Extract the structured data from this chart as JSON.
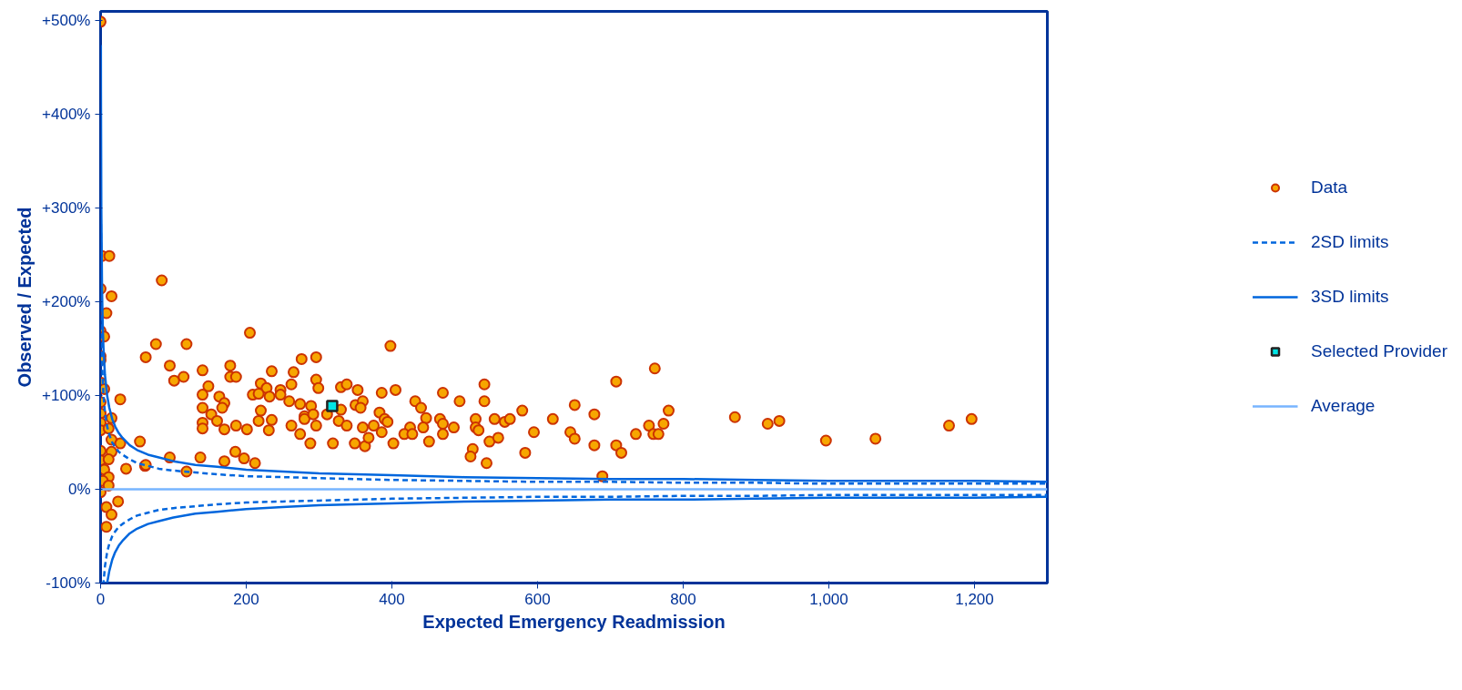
{
  "chart_data": {
    "type": "scatter",
    "xlabel": "Expected Emergency Readmission",
    "ylabel": "Observed / Expected",
    "xlim": [
      0,
      1300
    ],
    "ylim": [
      -100,
      510
    ],
    "xticks": [
      0,
      200,
      400,
      600,
      800,
      {
        "value": 1000,
        "label": "1,000"
      },
      {
        "value": 1200,
        "label": "1,200"
      }
    ],
    "yticks": [
      {
        "value": -100,
        "label": "-100%"
      },
      {
        "value": 0,
        "label": "0%"
      },
      {
        "value": 100,
        "label": "+100%"
      },
      {
        "value": 200,
        "label": "+200%"
      },
      {
        "value": 300,
        "label": "+300%"
      },
      {
        "value": 400,
        "label": "+400%"
      },
      {
        "value": 500,
        "label": "+500%"
      }
    ],
    "grid": false,
    "legend": "right",
    "series": [
      {
        "name": "Data",
        "marker": "circle",
        "color": "#f7a600",
        "x": [
          0,
          2,
          12,
          0,
          15,
          8,
          0,
          5,
          0,
          0,
          0,
          5,
          0,
          27,
          0,
          15,
          0,
          0,
          11,
          15,
          27,
          0,
          15,
          0,
          11,
          5,
          11,
          3,
          11,
          0,
          8,
          15,
          24,
          8,
          54,
          35,
          61,
          84,
          76,
          118,
          62,
          95,
          140,
          178,
          101,
          114,
          148,
          140,
          163,
          170,
          140,
          167,
          152,
          160,
          140,
          140,
          170,
          186,
          201,
          178,
          186,
          205,
          235,
          265,
          276,
          296,
          220,
          228,
          247,
          262,
          209,
          217,
          232,
          247,
          259,
          274,
          289,
          296,
          299,
          220,
          235,
          217,
          231,
          262,
          274,
          280,
          280,
          292,
          296,
          311,
          330,
          327,
          338,
          330,
          338,
          353,
          350,
          360,
          357,
          383,
          390,
          394,
          360,
          375,
          386,
          398,
          386,
          405,
          432,
          440,
          447,
          425,
          443,
          417,
          428,
          451,
          466,
          470,
          470,
          470,
          485,
          493,
          515,
          515,
          519,
          527,
          527,
          541,
          555,
          562,
          534,
          546,
          511,
          508,
          530,
          288,
          319,
          349,
          363,
          368,
          402,
          185,
          197,
          212,
          170,
          137,
          95,
          118,
          62,
          579,
          583,
          595,
          621,
          651,
          645,
          651,
          678,
          678,
          689,
          708,
          708,
          715,
          735,
          753,
          761,
          759,
          766,
          773,
          780,
          871,
          916,
          932,
          996,
          1064,
          1165,
          1196
        ],
        "values": [
          499,
          249,
          249,
          214,
          206,
          188,
          169,
          163,
          142,
          138,
          114,
          107,
          93,
          96,
          81,
          76,
          71,
          63,
          65,
          53,
          49,
          41,
          40,
          31,
          32,
          21,
          13,
          9,
          4,
          -3,
          -19,
          -27,
          -13,
          -40,
          51,
          22,
          25,
          223,
          155,
          155,
          141,
          132,
          127,
          132,
          116,
          120,
          110,
          101,
          99,
          92,
          87,
          87,
          80,
          73,
          71,
          65,
          64,
          68,
          64,
          120,
          120,
          167,
          126,
          125,
          139,
          141,
          113,
          108,
          106,
          112,
          101,
          102,
          99,
          101,
          94,
          91,
          89,
          117,
          108,
          84,
          74,
          73,
          63,
          68,
          59,
          78,
          75,
          80,
          68,
          80,
          85,
          73,
          68,
          109,
          112,
          106,
          90,
          94,
          87,
          82,
          75,
          72,
          66,
          68,
          61,
          153,
          103,
          106,
          94,
          87,
          76,
          66,
          66,
          59,
          59,
          51,
          75,
          103,
          70,
          59,
          66,
          94,
          75,
          66,
          63,
          112,
          94,
          75,
          72,
          75,
          51,
          55,
          43,
          35,
          28,
          49,
          49,
          49,
          46,
          55,
          49,
          40,
          33,
          28,
          30,
          34,
          34,
          19,
          26,
          84,
          39,
          61,
          75,
          90,
          61,
          54,
          80,
          47,
          14,
          115,
          47,
          39,
          59,
          68,
          129,
          59,
          59,
          70,
          84,
          77,
          70,
          73,
          52,
          54,
          68,
          75
        ]
      },
      {
        "name": "2SD limits",
        "type": "line",
        "line_style": "dashed",
        "color": "#0066dd",
        "x": [
          0.5,
          1,
          2,
          3,
          4,
          6,
          9,
          12,
          16,
          20,
          25,
          30,
          40,
          50,
          65,
          80,
          100,
          130,
          160,
          200,
          250,
          300,
          400,
          500,
          600,
          700,
          800,
          900,
          1000,
          1100,
          1200,
          1300
        ],
        "values": [
          283,
          200,
          141,
          115,
          100,
          82,
          67,
          58,
          50,
          45,
          40,
          37,
          32,
          28,
          25,
          22,
          20,
          18,
          16,
          14,
          13,
          12,
          10,
          9,
          8,
          8,
          7,
          7,
          6,
          6,
          6,
          6
        ]
      },
      {
        "type": "line",
        "line_style": "dashed",
        "color": "#0066dd",
        "x": [
          0.5,
          1,
          2,
          3,
          4,
          6,
          9,
          12,
          16,
          20,
          25,
          30,
          40,
          50,
          65,
          80,
          100,
          130,
          160,
          200,
          250,
          300,
          400,
          500,
          600,
          700,
          800,
          900,
          1000,
          1100,
          1200,
          1300
        ],
        "values": [
          -100,
          -100,
          -100,
          -100,
          -100,
          -82,
          -67,
          -58,
          -50,
          -45,
          -40,
          -37,
          -32,
          -28,
          -25,
          -22,
          -20,
          -18,
          -16,
          -14,
          -13,
          -12,
          -10,
          -9,
          -8,
          -8,
          -7,
          -7,
          -6,
          -6,
          -6,
          -6
        ]
      },
      {
        "name": "3SD limits",
        "type": "line",
        "line_style": "solid",
        "color": "#0066dd",
        "x": [
          0.4,
          0.5,
          1,
          2,
          3,
          4,
          6,
          9,
          12,
          16,
          20,
          25,
          30,
          40,
          50,
          65,
          80,
          100,
          130,
          160,
          200,
          250,
          300,
          400,
          500,
          600,
          700,
          800,
          900,
          1000,
          1100,
          1200,
          1300
        ],
        "values": [
          474,
          424,
          300,
          212,
          173,
          150,
          122,
          100,
          87,
          75,
          67,
          60,
          55,
          47,
          42,
          37,
          34,
          30,
          26,
          24,
          21,
          19,
          17,
          15,
          13,
          12,
          11,
          11,
          10,
          9,
          9,
          9,
          8
        ]
      },
      {
        "type": "line",
        "line_style": "solid",
        "color": "#0066dd",
        "x": [
          0.4,
          0.5,
          1,
          2,
          3,
          4,
          6,
          9,
          12,
          16,
          20,
          25,
          30,
          40,
          50,
          65,
          80,
          100,
          130,
          160,
          200,
          250,
          300,
          400,
          500,
          600,
          700,
          800,
          900,
          1000,
          1100,
          1200,
          1300
        ],
        "values": [
          -100,
          -100,
          -100,
          -100,
          -100,
          -100,
          -100,
          -100,
          -87,
          -75,
          -67,
          -60,
          -55,
          -47,
          -42,
          -37,
          -34,
          -30,
          -26,
          -24,
          -21,
          -19,
          -17,
          -15,
          -13,
          -12,
          -11,
          -11,
          -10,
          -9,
          -9,
          -9,
          -8
        ]
      },
      {
        "name": "Selected Provider",
        "marker": "square",
        "color": "#00e5e5",
        "x": [
          318
        ],
        "values": [
          89
        ]
      },
      {
        "name": "Average",
        "type": "line",
        "line_style": "solid",
        "color": "#77b5ff",
        "x": [
          0,
          1300
        ],
        "values": [
          0,
          0
        ]
      }
    ]
  }
}
